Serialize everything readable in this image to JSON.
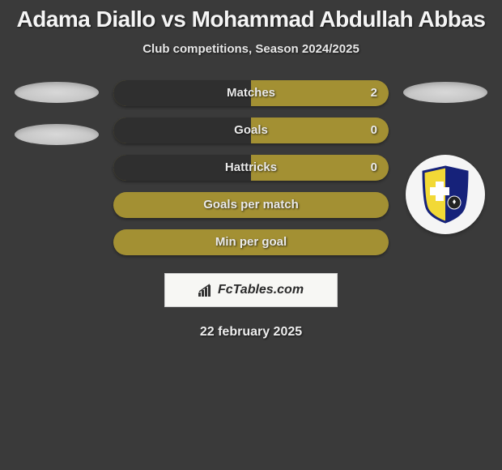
{
  "title": "Adama Diallo vs Mohammad Abdullah Abbas",
  "subtitle": "Club competitions, Season 2024/2025",
  "stats": [
    {
      "label": "Matches",
      "value": "2",
      "split": true
    },
    {
      "label": "Goals",
      "value": "0",
      "split": true
    },
    {
      "label": "Hattricks",
      "value": "0",
      "split": true
    },
    {
      "label": "Goals per match",
      "value": "",
      "split": false
    },
    {
      "label": "Min per goal",
      "value": "",
      "split": false
    }
  ],
  "brand": "FcTables.com",
  "date": "22 february 2025",
  "colors": {
    "bg": "#3a3a3a",
    "bar_fill": "#a39033",
    "bar_dark": "#2f2f2f",
    "text": "#eaeaea",
    "badge_primary": "#f2d936",
    "badge_secondary": "#16227a"
  }
}
